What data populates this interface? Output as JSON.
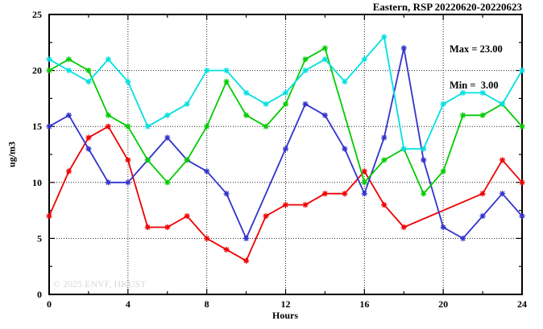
{
  "title": "Eastern, RSP 20220620-20220623",
  "annotation": {
    "max_label": "Max = 23.00",
    "min_label": "Min =  3.00"
  },
  "watermark": "© 2025 ENVF, HKUST",
  "chart_data": {
    "type": "line",
    "title": "Eastern, RSP 20220620-20220623",
    "xlabel": "Hours",
    "ylabel": "ug/m3",
    "xlim": [
      0,
      24
    ],
    "ylim": [
      0,
      25
    ],
    "grid": true,
    "legend": "none",
    "x_major_ticks": [
      0,
      4,
      8,
      12,
      16,
      20,
      24
    ],
    "x_minor_ticks": [
      2,
      6,
      10,
      14,
      18,
      22
    ],
    "y_major_ticks": [
      0,
      5,
      10,
      15,
      20,
      25
    ],
    "y_minor_ticks": [
      2.5,
      7.5,
      12.5,
      17.5,
      22.5
    ],
    "grid_x": [
      4,
      8,
      12,
      16,
      20
    ],
    "grid_y": [
      5,
      10,
      15,
      20
    ],
    "x": [
      0,
      1,
      2,
      3,
      4,
      5,
      6,
      7,
      8,
      9,
      10,
      11,
      12,
      13,
      14,
      15,
      16,
      17,
      18,
      19,
      20,
      21,
      22,
      23,
      24
    ],
    "marker": "asterisk",
    "series": [
      {
        "name": "series-red",
        "color": "#ee0000",
        "values": [
          7,
          11,
          14,
          15,
          12,
          6,
          6,
          7,
          5,
          4,
          3,
          7,
          8,
          8,
          9,
          9,
          11,
          8,
          6,
          null,
          null,
          null,
          9,
          12,
          10
        ]
      },
      {
        "name": "series-blue",
        "color": "#3333cc",
        "values": [
          15,
          16,
          13,
          10,
          10,
          12,
          14,
          12,
          11,
          9,
          5,
          null,
          13,
          17,
          16,
          13,
          9,
          14,
          22,
          12,
          6,
          5,
          7,
          9,
          7
        ]
      },
      {
        "name": "series-green",
        "color": "#00cc00",
        "values": [
          20,
          21,
          20,
          16,
          15,
          12,
          10,
          12,
          15,
          19,
          16,
          15,
          17,
          21,
          22,
          null,
          10,
          12,
          13,
          9,
          11,
          16,
          16,
          17,
          15
        ]
      },
      {
        "name": "series-cyan",
        "color": "#00e0e0",
        "values": [
          21,
          20,
          19,
          21,
          19,
          15,
          16,
          17,
          20,
          20,
          18,
          17,
          18,
          20,
          21,
          19,
          21,
          23,
          13,
          13,
          17,
          18,
          18,
          17,
          20
        ]
      }
    ],
    "annotations": [
      "Max = 23.00",
      "Min =  3.00"
    ]
  }
}
